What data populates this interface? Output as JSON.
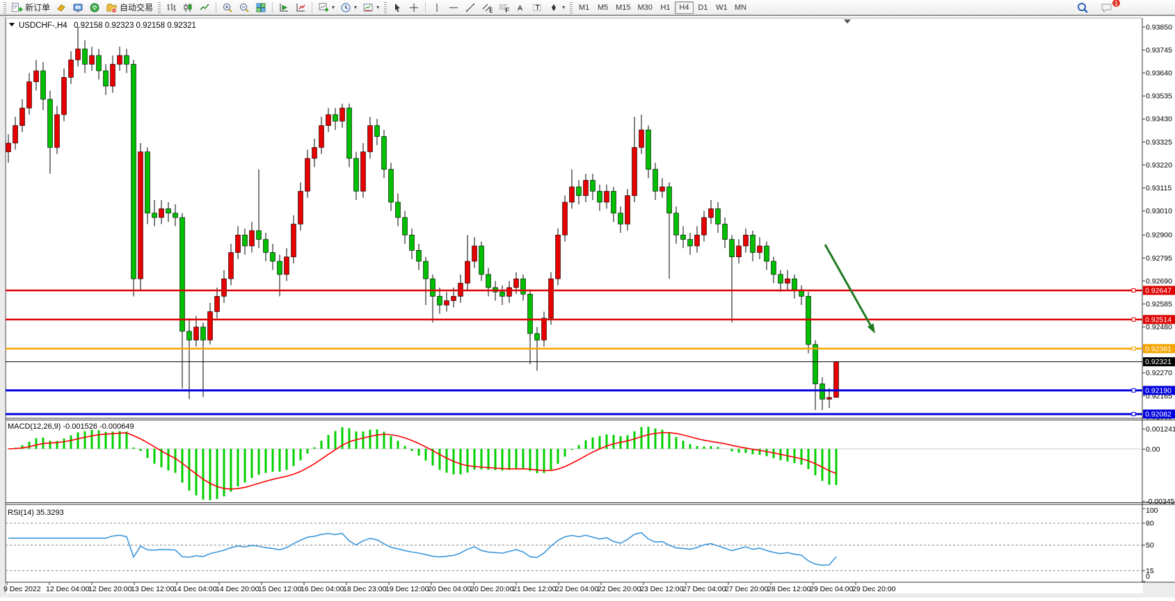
{
  "toolbar": {
    "new_order_label": "新订单",
    "autotrading_label": "自动交易",
    "timeframes": [
      "M1",
      "M5",
      "M15",
      "M30",
      "H1",
      "H4",
      "D1",
      "W1",
      "MN"
    ],
    "active_timeframe": "H4",
    "notification_count": "1"
  },
  "chart": {
    "title_symbol": "USDCHF-,H4",
    "ohlc_values": "0.92158 0.92323 0.92158 0.92321",
    "macd_label": "MACD(12,26,9) -0.001526 -0.000649",
    "rsi_label": "RSI(14) 35.3293"
  },
  "chart_data": {
    "type": "candlestick",
    "symbol": "USDCHF",
    "timeframe": "H4",
    "title": "USDCHF-,H4",
    "ohlc_display": "0.92158 0.92323 0.92158 0.92321",
    "colors": {
      "up": "#e60000",
      "down": "#00bf00",
      "wick": "#000000"
    },
    "candles": [
      [
        0.9328,
        0.9336,
        0.9323,
        0.9332
      ],
      [
        0.9332,
        0.9344,
        0.9329,
        0.934
      ],
      [
        0.934,
        0.9352,
        0.9337,
        0.9348
      ],
      [
        0.9348,
        0.9364,
        0.9345,
        0.936
      ],
      [
        0.936,
        0.937,
        0.9356,
        0.9365
      ],
      [
        0.9365,
        0.9369,
        0.9347,
        0.9352
      ],
      [
        0.9352,
        0.9356,
        0.9318,
        0.933
      ],
      [
        0.933,
        0.9349,
        0.9327,
        0.9345
      ],
      [
        0.9345,
        0.9366,
        0.9342,
        0.9362
      ],
      [
        0.9362,
        0.9374,
        0.9359,
        0.937
      ],
      [
        0.937,
        0.9385,
        0.9367,
        0.9375
      ],
      [
        0.9375,
        0.9379,
        0.9364,
        0.9368
      ],
      [
        0.9368,
        0.9376,
        0.9365,
        0.9372
      ],
      [
        0.9372,
        0.9375,
        0.9361,
        0.9365
      ],
      [
        0.9365,
        0.9368,
        0.9354,
        0.9358
      ],
      [
        0.9358,
        0.9372,
        0.9355,
        0.9368
      ],
      [
        0.9368,
        0.9376,
        0.9365,
        0.9372
      ],
      [
        0.9372,
        0.9375,
        0.9364,
        0.9368
      ],
      [
        0.9368,
        0.937,
        0.9262,
        0.927
      ],
      [
        0.927,
        0.9332,
        0.9265,
        0.9328
      ],
      [
        0.9328,
        0.933,
        0.9295,
        0.93
      ],
      [
        0.93,
        0.9306,
        0.9294,
        0.9298
      ],
      [
        0.9298,
        0.9306,
        0.9295,
        0.9302
      ],
      [
        0.9302,
        0.9305,
        0.9296,
        0.93
      ],
      [
        0.93,
        0.9304,
        0.9294,
        0.9298
      ],
      [
        0.9298,
        0.93,
        0.922,
        0.9246
      ],
      [
        0.9246,
        0.9252,
        0.9215,
        0.9242
      ],
      [
        0.9242,
        0.9253,
        0.9239,
        0.9248
      ],
      [
        0.9248,
        0.925,
        0.9216,
        0.9242
      ],
      [
        0.9242,
        0.9259,
        0.924,
        0.9255
      ],
      [
        0.9255,
        0.9266,
        0.9252,
        0.9262
      ],
      [
        0.9262,
        0.9274,
        0.9259,
        0.927
      ],
      [
        0.927,
        0.9286,
        0.9267,
        0.9282
      ],
      [
        0.9282,
        0.9294,
        0.9279,
        0.929
      ],
      [
        0.929,
        0.9293,
        0.9281,
        0.9285
      ],
      [
        0.9285,
        0.9296,
        0.9282,
        0.9292
      ],
      [
        0.9292,
        0.932,
        0.9284,
        0.9288
      ],
      [
        0.9288,
        0.9291,
        0.9278,
        0.9282
      ],
      [
        0.9282,
        0.9286,
        0.9274,
        0.9278
      ],
      [
        0.9278,
        0.9281,
        0.9262,
        0.9272
      ],
      [
        0.9272,
        0.9284,
        0.9269,
        0.928
      ],
      [
        0.928,
        0.9299,
        0.9277,
        0.9295
      ],
      [
        0.9295,
        0.9314,
        0.9292,
        0.931
      ],
      [
        0.931,
        0.9329,
        0.9307,
        0.9325
      ],
      [
        0.9325,
        0.9334,
        0.9321,
        0.933
      ],
      [
        0.933,
        0.9344,
        0.9327,
        0.934
      ],
      [
        0.934,
        0.9348,
        0.9337,
        0.9345
      ],
      [
        0.9345,
        0.9348,
        0.9338,
        0.9342
      ],
      [
        0.9342,
        0.935,
        0.9339,
        0.9348
      ],
      [
        0.9348,
        0.935,
        0.9321,
        0.9325
      ],
      [
        0.9325,
        0.9328,
        0.9306,
        0.931
      ],
      [
        0.931,
        0.9332,
        0.9307,
        0.9328
      ],
      [
        0.9328,
        0.9344,
        0.9325,
        0.934
      ],
      [
        0.934,
        0.9343,
        0.9331,
        0.9335
      ],
      [
        0.9335,
        0.9338,
        0.9316,
        0.932
      ],
      [
        0.932,
        0.9323,
        0.9301,
        0.9305
      ],
      [
        0.9305,
        0.9309,
        0.9294,
        0.9298
      ],
      [
        0.9298,
        0.9301,
        0.9286,
        0.929
      ],
      [
        0.929,
        0.9293,
        0.9279,
        0.9283
      ],
      [
        0.9283,
        0.9286,
        0.9274,
        0.9278
      ],
      [
        0.9278,
        0.928,
        0.9258,
        0.927
      ],
      [
        0.927,
        0.9272,
        0.925,
        0.9262
      ],
      [
        0.9262,
        0.9266,
        0.9254,
        0.9258
      ],
      [
        0.9258,
        0.9264,
        0.9255,
        0.926
      ],
      [
        0.926,
        0.9266,
        0.9257,
        0.9262
      ],
      [
        0.9262,
        0.9272,
        0.9259,
        0.9268
      ],
      [
        0.9268,
        0.929,
        0.9265,
        0.9278
      ],
      [
        0.9278,
        0.9289,
        0.9275,
        0.9285
      ],
      [
        0.9285,
        0.9287,
        0.9269,
        0.9272
      ],
      [
        0.9272,
        0.9275,
        0.9262,
        0.9266
      ],
      [
        0.9266,
        0.9269,
        0.926,
        0.9264
      ],
      [
        0.9264,
        0.9267,
        0.9258,
        0.9262
      ],
      [
        0.9262,
        0.9269,
        0.9259,
        0.9266
      ],
      [
        0.9266,
        0.9273,
        0.9263,
        0.927
      ],
      [
        0.927,
        0.9272,
        0.926,
        0.9263
      ],
      [
        0.9263,
        0.9265,
        0.9231,
        0.9245
      ],
      [
        0.9245,
        0.9248,
        0.9228,
        0.9242
      ],
      [
        0.9242,
        0.9255,
        0.9239,
        0.9252
      ],
      [
        0.9252,
        0.9273,
        0.9249,
        0.927
      ],
      [
        0.927,
        0.9293,
        0.9267,
        0.929
      ],
      [
        0.929,
        0.9308,
        0.9287,
        0.9305
      ],
      [
        0.9305,
        0.932,
        0.9302,
        0.9312
      ],
      [
        0.9312,
        0.9315,
        0.9304,
        0.9308
      ],
      [
        0.9308,
        0.9318,
        0.9305,
        0.9315
      ],
      [
        0.9315,
        0.9318,
        0.9306,
        0.931
      ],
      [
        0.931,
        0.9313,
        0.9301,
        0.9305
      ],
      [
        0.9305,
        0.9313,
        0.9302,
        0.931
      ],
      [
        0.931,
        0.9312,
        0.9296,
        0.93
      ],
      [
        0.93,
        0.9303,
        0.9291,
        0.9295
      ],
      [
        0.9295,
        0.9311,
        0.9292,
        0.9308
      ],
      [
        0.9308,
        0.9344,
        0.9305,
        0.933
      ],
      [
        0.933,
        0.9345,
        0.9327,
        0.9338
      ],
      [
        0.9338,
        0.934,
        0.9316,
        0.932
      ],
      [
        0.932,
        0.9323,
        0.9306,
        0.931
      ],
      [
        0.931,
        0.9316,
        0.9307,
        0.9312
      ],
      [
        0.9312,
        0.9314,
        0.927,
        0.93
      ],
      [
        0.93,
        0.9303,
        0.9286,
        0.929
      ],
      [
        0.929,
        0.9294,
        0.9284,
        0.9288
      ],
      [
        0.9288,
        0.9291,
        0.9281,
        0.9285
      ],
      [
        0.9285,
        0.9294,
        0.9282,
        0.929
      ],
      [
        0.929,
        0.9301,
        0.9287,
        0.9298
      ],
      [
        0.9298,
        0.9306,
        0.9295,
        0.9302
      ],
      [
        0.9302,
        0.9305,
        0.9291,
        0.9295
      ],
      [
        0.9295,
        0.9298,
        0.9284,
        0.9288
      ],
      [
        0.9288,
        0.929,
        0.925,
        0.928
      ],
      [
        0.928,
        0.9288,
        0.9277,
        0.9285
      ],
      [
        0.9285,
        0.9293,
        0.9282,
        0.929
      ],
      [
        0.929,
        0.9292,
        0.9278,
        0.9282
      ],
      [
        0.9282,
        0.9289,
        0.9279,
        0.9285
      ],
      [
        0.9285,
        0.9287,
        0.9274,
        0.9278
      ],
      [
        0.9278,
        0.928,
        0.9268,
        0.9272
      ],
      [
        0.9272,
        0.9274,
        0.9264,
        0.9268
      ],
      [
        0.9268,
        0.9274,
        0.9265,
        0.927
      ],
      [
        0.927,
        0.9272,
        0.9261,
        0.9265
      ],
      [
        0.9265,
        0.9267,
        0.9258,
        0.9262
      ],
      [
        0.9262,
        0.9264,
        0.9236,
        0.924
      ],
      [
        0.924,
        0.9242,
        0.921,
        0.9222
      ],
      [
        0.9222,
        0.9225,
        0.921,
        0.9215
      ],
      [
        0.9215,
        0.922,
        0.9211,
        0.92158
      ],
      [
        0.92158,
        0.92323,
        0.92158,
        0.92321
      ]
    ],
    "price_axis_ticks": [
      "0.93850",
      "0.93745",
      "0.93640",
      "0.93535",
      "0.93430",
      "0.93325",
      "0.93220",
      "0.93115",
      "0.93010",
      "0.92900",
      "0.92795",
      "0.92690",
      "0.92585",
      "0.92480",
      "0.92270",
      "0.92165",
      "0.92060"
    ],
    "price_lines": [
      {
        "text": "0.92647",
        "price": 0.92647,
        "color": "#dd0000",
        "width": 2.5,
        "handle": true
      },
      {
        "text": "0.92514",
        "price": 0.92514,
        "color": "#dd0000",
        "width": 2.5,
        "handle": true
      },
      {
        "text": "0.92381",
        "price": 0.92381,
        "color": "#f5a300",
        "width": 2.5,
        "handle": true
      },
      {
        "text": "0.92321",
        "price": 0.92321,
        "color": "#000000",
        "width": 1,
        "handle": false,
        "is_current_price": true
      },
      {
        "text": "0.92190",
        "price": 0.9219,
        "color": "#0000dd",
        "width": 3,
        "handle": true
      },
      {
        "text": "0.92082",
        "price": 0.92082,
        "color": "#0000dd",
        "width": 3,
        "handle": true
      }
    ],
    "time_labels": [
      "9 Dec 2022",
      "12 Dec 04:00",
      "12 Dec 20:00",
      "13 Dec 12:00",
      "14 Dec 04:00",
      "14 Dec 20:00",
      "15 Dec 12:00",
      "16 Dec 04:00",
      "18 Dec 23:00",
      "19 Dec 12:00",
      "20 Dec 04:00",
      "20 Dec 20:00",
      "21 Dec 12:00",
      "22 Dec 04:00",
      "22 Dec 20:00",
      "23 Dec 12:00",
      "27 Dec 04:00",
      "27 Dec 20:00",
      "28 Dec 12:00",
      "29 Dec 04:00",
      "29 Dec 20:00"
    ],
    "macd": {
      "label": "MACD(12,26,9) -0.001526 -0.000649",
      "params": [
        12,
        26,
        9
      ],
      "main_value": -0.001526,
      "signal_value": -0.000649,
      "axis_labels": [
        "0.001241",
        "0.00",
        "-0.003459"
      ],
      "hist_color": "#00d000",
      "signal_color": "#ff0000"
    },
    "rsi": {
      "label": "RSI(14) 35.3293",
      "period": 14,
      "value": 35.3293,
      "levels": [
        100,
        80,
        50,
        15,
        0
      ],
      "dashed_levels": [
        80,
        50,
        15
      ],
      "line_color": "#3c96d9"
    },
    "annotation_arrow": {
      "from": [
        1186,
        352
      ],
      "to": [
        1258,
        480
      ],
      "color": "#1e7a1e",
      "width": 3
    }
  }
}
